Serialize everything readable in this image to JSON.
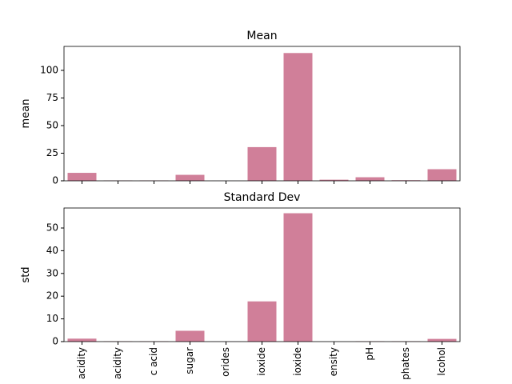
{
  "chart_data": [
    {
      "type": "bar",
      "title": "Mean",
      "ylabel": "mean",
      "categories": [
        null,
        null,
        null,
        null,
        null,
        null,
        null,
        null,
        null,
        null,
        null
      ],
      "values": [
        7.2,
        0.34,
        0.32,
        5.4,
        0.056,
        30.5,
        115.7,
        0.995,
        3.22,
        0.53,
        10.5
      ],
      "color": "#d07f99",
      "ylim": [
        0,
        121.7
      ],
      "yticks": [
        0,
        25,
        50,
        75,
        100
      ]
    },
    {
      "type": "bar",
      "title": "Standard Dev",
      "ylabel": "std",
      "categories": [
        "acidity",
        "acidity",
        "c acid",
        "sugar",
        "orides",
        "ioxide",
        "ioxide",
        "ensity",
        "pH",
        "phates",
        "lcohol"
      ],
      "values": [
        1.3,
        0.16,
        0.15,
        4.76,
        0.035,
        17.7,
        56.5,
        0.003,
        0.16,
        0.15,
        1.19
      ],
      "color": "#d07f99",
      "ylim": [
        0,
        58.8
      ],
      "yticks": [
        0,
        10,
        20,
        30,
        40,
        50
      ]
    }
  ]
}
